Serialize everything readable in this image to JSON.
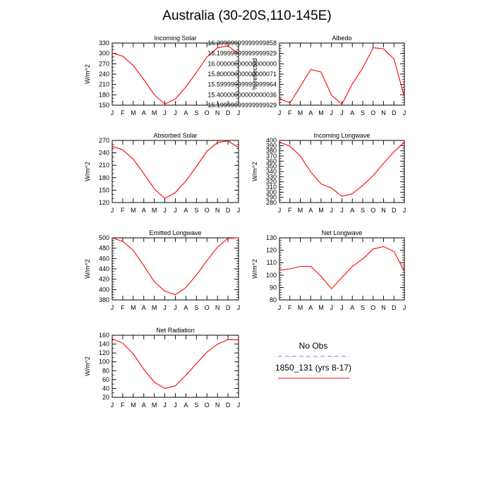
{
  "title": "Australia (30-20S,110-145E)",
  "months": [
    "J",
    "F",
    "M",
    "A",
    "M",
    "J",
    "J",
    "A",
    "S",
    "O",
    "N",
    "D",
    "J"
  ],
  "legend": {
    "obs_label": "No Obs",
    "obs_color": "#7b7bf0",
    "model_label": "1850_131 (yrs 8-17)",
    "model_color": "#ff0000"
  },
  "chart_data": [
    {
      "type": "line",
      "title": "Incoming Solar",
      "ylabel": "W/m^2",
      "ylim": [
        150,
        330
      ],
      "yticks": [
        150,
        180,
        210,
        240,
        270,
        300,
        330
      ],
      "minor_step": 10,
      "categories": [
        "J",
        "F",
        "M",
        "A",
        "M",
        "J",
        "J",
        "A",
        "S",
        "O",
        "N",
        "D",
        "J"
      ],
      "series": [
        {
          "values": [
            301,
            292,
            265,
            224,
            180,
            153,
            168,
            203,
            245,
            290,
            316,
            322,
            299
          ]
        }
      ]
    },
    {
      "type": "line",
      "title": "Albedo",
      "ylabel": "% reflected",
      "ylim": [
        15.2,
        16.4
      ],
      "yticks": [
        15.2,
        15.4,
        15.6,
        15.8,
        16.0,
        16.2,
        16.4
      ],
      "minor_step": 0.05,
      "categories": [
        "J",
        "F",
        "M",
        "A",
        "M",
        "J",
        "J",
        "A",
        "S",
        "O",
        "N",
        "D",
        "J"
      ],
      "series": [
        {
          "values": [
            15.33,
            15.24,
            15.56,
            15.89,
            15.84,
            15.39,
            15.22,
            15.61,
            15.92,
            16.31,
            16.29,
            16.09,
            15.36
          ]
        }
      ]
    },
    {
      "type": "line",
      "title": "Absorbed Solar",
      "ylabel": "W/m^2",
      "ylim": [
        120,
        270
      ],
      "yticks": [
        120,
        150,
        180,
        210,
        240,
        270
      ],
      "minor_step": 10,
      "categories": [
        "J",
        "F",
        "M",
        "A",
        "M",
        "J",
        "J",
        "A",
        "S",
        "O",
        "N",
        "D",
        "J"
      ],
      "series": [
        {
          "values": [
            256,
            247,
            225,
            190,
            153,
            130,
            144,
            172,
            207,
            244,
            265,
            269,
            253
          ]
        }
      ]
    },
    {
      "type": "line",
      "title": "Incoming Longwave",
      "ylabel": "W/m^2",
      "ylim": [
        280,
        400
      ],
      "yticks": [
        280,
        290,
        300,
        310,
        320,
        330,
        340,
        350,
        360,
        370,
        380,
        390,
        400
      ],
      "minor_step": 5,
      "categories": [
        "J",
        "F",
        "M",
        "A",
        "M",
        "J",
        "J",
        "A",
        "S",
        "O",
        "N",
        "D",
        "J"
      ],
      "series": [
        {
          "values": [
            397,
            389,
            370,
            339,
            316,
            308,
            292,
            297,
            313,
            332,
            356,
            378,
            397
          ]
        }
      ]
    },
    {
      "type": "line",
      "title": "Emitted Longwave",
      "ylabel": "W/m^2",
      "ylim": [
        380,
        500
      ],
      "yticks": [
        380,
        400,
        420,
        440,
        460,
        480,
        500
      ],
      "minor_step": 5,
      "categories": [
        "J",
        "F",
        "M",
        "A",
        "M",
        "J",
        "J",
        "A",
        "S",
        "O",
        "N",
        "D",
        "J"
      ],
      "series": [
        {
          "values": [
            500,
            493,
            476,
            446,
            415,
            397,
            390,
            404,
            428,
            456,
            482,
            499,
            500
          ]
        }
      ]
    },
    {
      "type": "line",
      "title": "Net Longwave",
      "ylabel": "W/m^2",
      "ylim": [
        80,
        130
      ],
      "yticks": [
        80,
        90,
        100,
        110,
        120,
        130
      ],
      "minor_step": 2,
      "categories": [
        "J",
        "F",
        "M",
        "A",
        "M",
        "J",
        "J",
        "A",
        "S",
        "O",
        "N",
        "D",
        "J"
      ],
      "series": [
        {
          "values": [
            104,
            105,
            107,
            107,
            99,
            89,
            98,
            107,
            113,
            121,
            123,
            119,
            103
          ]
        }
      ]
    },
    {
      "type": "line",
      "title": "Net Radiation",
      "ylabel": "W/m^2",
      "ylim": [
        20,
        160
      ],
      "yticks": [
        20,
        40,
        60,
        80,
        100,
        120,
        140,
        160
      ],
      "minor_step": 10,
      "categories": [
        "J",
        "F",
        "M",
        "A",
        "M",
        "J",
        "J",
        "A",
        "S",
        "O",
        "N",
        "D",
        "J"
      ],
      "series": [
        {
          "values": [
            152,
            142,
            118,
            83,
            54,
            40,
            46,
            70,
            96,
            122,
            140,
            150,
            150
          ]
        }
      ]
    }
  ]
}
